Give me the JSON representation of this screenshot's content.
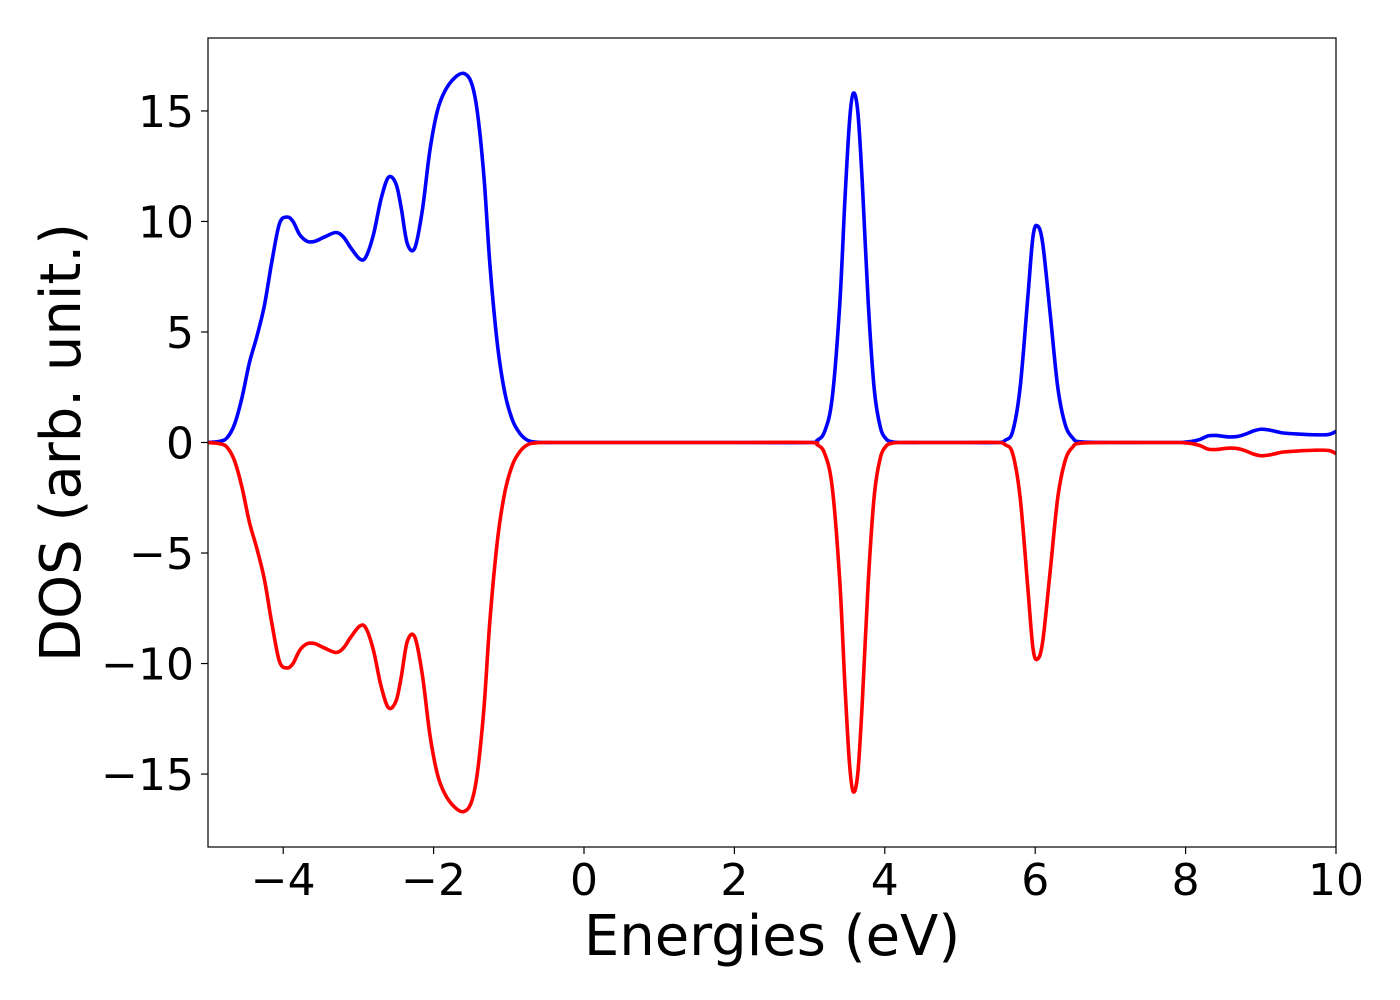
{
  "chart_data": {
    "type": "line",
    "title": "",
    "xlabel": "Energies (eV)",
    "ylabel": "DOS (arb. unit.)",
    "xlim": [
      -5,
      10
    ],
    "ylim": [
      -18.3,
      18.3
    ],
    "xticks": [
      -4,
      -2,
      0,
      2,
      4,
      6,
      8,
      10
    ],
    "xtick_labels": [
      "−4",
      "−2",
      "0",
      "2",
      "4",
      "6",
      "8",
      "10"
    ],
    "yticks": [
      -15,
      -10,
      -5,
      0,
      5,
      10,
      15
    ],
    "ytick_labels": [
      "−15",
      "−10",
      "−5",
      "0",
      "5",
      "10",
      "15"
    ],
    "grid": false,
    "legend": "none",
    "series": [
      {
        "color": "#0000ff",
        "x": [
          -5.0,
          -4.85,
          -4.75,
          -4.65,
          -4.55,
          -4.45,
          -4.35,
          -4.25,
          -4.15,
          -4.05,
          -3.95,
          -3.87,
          -3.78,
          -3.68,
          -3.58,
          -3.45,
          -3.3,
          -3.2,
          -3.1,
          -2.98,
          -2.9,
          -2.8,
          -2.7,
          -2.6,
          -2.5,
          -2.43,
          -2.35,
          -2.25,
          -2.15,
          -2.05,
          -1.95,
          -1.85,
          -1.72,
          -1.6,
          -1.5,
          -1.42,
          -1.33,
          -1.25,
          -1.15,
          -1.05,
          -0.95,
          -0.85,
          -0.75,
          -0.65,
          -0.55,
          -0.4,
          0.0,
          1.0,
          2.0,
          3.0,
          3.1,
          3.2,
          3.3,
          3.4,
          3.47,
          3.53,
          3.58,
          3.64,
          3.7,
          3.78,
          3.86,
          3.94,
          4.02,
          4.1,
          4.2,
          4.5,
          5.0,
          5.5,
          5.6,
          5.7,
          5.8,
          5.9,
          5.97,
          6.03,
          6.1,
          6.2,
          6.3,
          6.4,
          6.5,
          6.6,
          7.0,
          7.5,
          7.9,
          8.0,
          8.1,
          8.2,
          8.3,
          8.4,
          8.5,
          8.6,
          8.7,
          8.8,
          8.9,
          9.0,
          9.1,
          9.2,
          9.3,
          9.5,
          9.7,
          9.9,
          10.0
        ],
        "y": [
          0.0,
          0.05,
          0.2,
          0.8,
          2.0,
          3.6,
          4.8,
          6.2,
          8.2,
          9.9,
          10.2,
          10.0,
          9.4,
          9.1,
          9.1,
          9.3,
          9.5,
          9.3,
          8.8,
          8.3,
          8.4,
          9.4,
          11.0,
          12.0,
          11.7,
          10.6,
          9.0,
          8.8,
          10.5,
          13.2,
          15.0,
          15.9,
          16.5,
          16.7,
          16.3,
          15.0,
          12.0,
          8.0,
          4.4,
          2.2,
          1.0,
          0.4,
          0.1,
          0.02,
          0.0,
          0.0,
          0.0,
          0.0,
          0.0,
          0.0,
          0.1,
          0.5,
          2.0,
          6.2,
          11.0,
          14.5,
          15.8,
          15.0,
          11.8,
          6.3,
          2.4,
          0.7,
          0.15,
          0.03,
          0.0,
          0.0,
          0.0,
          0.0,
          0.1,
          0.5,
          2.5,
          6.5,
          9.3,
          9.8,
          9.0,
          5.8,
          2.5,
          0.8,
          0.2,
          0.03,
          0.0,
          0.0,
          0.0,
          0.02,
          0.06,
          0.15,
          0.3,
          0.32,
          0.28,
          0.25,
          0.28,
          0.38,
          0.52,
          0.6,
          0.57,
          0.5,
          0.43,
          0.38,
          0.35,
          0.36,
          0.5
        ]
      },
      {
        "color": "#ff0000",
        "x": [
          -5.0,
          -4.85,
          -4.75,
          -4.65,
          -4.55,
          -4.45,
          -4.35,
          -4.25,
          -4.15,
          -4.05,
          -3.95,
          -3.87,
          -3.78,
          -3.68,
          -3.58,
          -3.45,
          -3.3,
          -3.2,
          -3.1,
          -2.98,
          -2.9,
          -2.8,
          -2.7,
          -2.6,
          -2.5,
          -2.43,
          -2.35,
          -2.25,
          -2.15,
          -2.05,
          -1.95,
          -1.85,
          -1.72,
          -1.6,
          -1.5,
          -1.42,
          -1.33,
          -1.25,
          -1.15,
          -1.05,
          -0.95,
          -0.85,
          -0.75,
          -0.65,
          -0.55,
          -0.4,
          0.0,
          1.0,
          2.0,
          3.0,
          3.1,
          3.2,
          3.3,
          3.4,
          3.47,
          3.53,
          3.58,
          3.64,
          3.7,
          3.78,
          3.86,
          3.94,
          4.02,
          4.1,
          4.2,
          4.5,
          5.0,
          5.5,
          5.6,
          5.7,
          5.8,
          5.9,
          5.97,
          6.03,
          6.1,
          6.2,
          6.3,
          6.4,
          6.5,
          6.6,
          7.0,
          7.5,
          7.9,
          8.0,
          8.1,
          8.2,
          8.3,
          8.4,
          8.5,
          8.6,
          8.7,
          8.8,
          8.9,
          9.0,
          9.1,
          9.2,
          9.3,
          9.5,
          9.7,
          9.9,
          10.0
        ],
        "y": [
          0.0,
          -0.05,
          -0.2,
          -0.8,
          -2.0,
          -3.6,
          -4.8,
          -6.2,
          -8.2,
          -9.9,
          -10.2,
          -10.0,
          -9.4,
          -9.1,
          -9.1,
          -9.3,
          -9.5,
          -9.3,
          -8.8,
          -8.3,
          -8.4,
          -9.4,
          -11.0,
          -12.0,
          -11.7,
          -10.6,
          -9.0,
          -8.8,
          -10.5,
          -13.2,
          -15.0,
          -15.9,
          -16.5,
          -16.7,
          -16.3,
          -15.0,
          -12.0,
          -8.0,
          -4.4,
          -2.2,
          -1.0,
          -0.4,
          -0.1,
          -0.02,
          0.0,
          0.0,
          0.0,
          0.0,
          0.0,
          0.0,
          -0.1,
          -0.5,
          -2.0,
          -6.2,
          -11.0,
          -14.5,
          -15.8,
          -15.0,
          -11.8,
          -6.3,
          -2.4,
          -0.7,
          -0.15,
          -0.03,
          0.0,
          0.0,
          0.0,
          0.0,
          -0.1,
          -0.5,
          -2.5,
          -6.5,
          -9.3,
          -9.8,
          -9.0,
          -5.8,
          -2.5,
          -0.8,
          -0.2,
          -0.03,
          0.0,
          0.0,
          0.0,
          -0.02,
          -0.06,
          -0.15,
          -0.3,
          -0.32,
          -0.28,
          -0.25,
          -0.28,
          -0.38,
          -0.52,
          -0.6,
          -0.57,
          -0.5,
          -0.43,
          -0.38,
          -0.35,
          -0.36,
          -0.5
        ]
      }
    ]
  }
}
